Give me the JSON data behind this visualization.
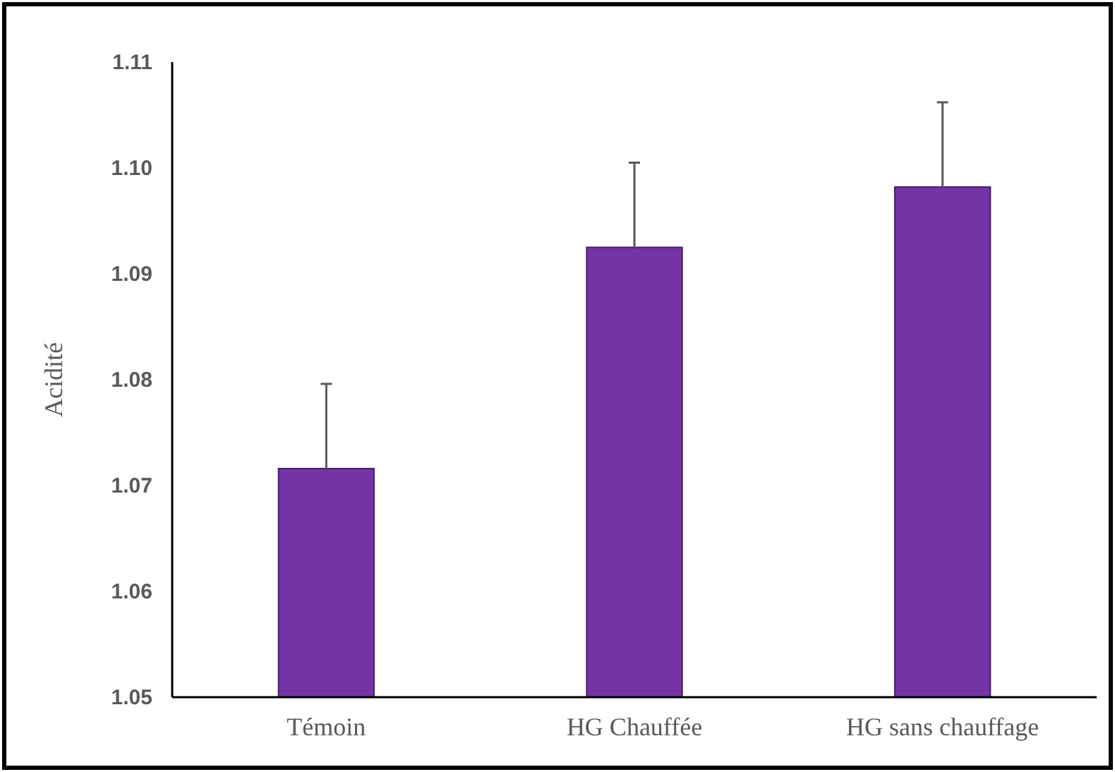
{
  "chart_data": {
    "type": "bar",
    "ylabel": "Acidité",
    "categories": [
      "Témoin",
      "HG Chauffée",
      "HG sans chauffage"
    ],
    "values": [
      1.0716,
      1.0925,
      1.0982
    ],
    "errors": [
      [
        1.0716,
        1.0796
      ],
      [
        1.0925,
        1.1005
      ],
      [
        1.0982,
        1.1062
      ]
    ],
    "color": "#7434a6",
    "ylim": [
      1.05,
      1.11
    ],
    "yticks": [
      {
        "value": 1.05,
        "label": "1.05"
      },
      {
        "value": 1.06,
        "label": "1.06"
      },
      {
        "value": 1.07,
        "label": "1.07"
      },
      {
        "value": 1.08,
        "label": "1.08"
      },
      {
        "value": 1.09,
        "label": "1.09"
      },
      {
        "value": 1.1,
        "label": "1.10"
      },
      {
        "value": 1.11,
        "label": "1.11"
      }
    ],
    "grid": false
  }
}
